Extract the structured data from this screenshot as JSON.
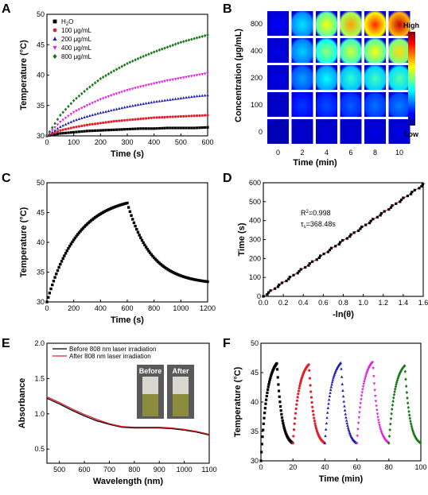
{
  "panels": [
    "A",
    "B",
    "C",
    "D",
    "E",
    "F"
  ],
  "colors": {
    "black": "#000000",
    "red": "#e0202a",
    "blue": "#2020b0",
    "magenta": "#e020e0",
    "green": "#1a7a1a"
  },
  "chart_data": [
    {
      "panel": "A",
      "type": "scatter",
      "xlabel": "Time (s)",
      "ylabel": "Temperature (°C)",
      "xlim": [
        0,
        600
      ],
      "ylim": [
        30,
        50
      ],
      "xticks": [
        0,
        100,
        200,
        300,
        400,
        500,
        600
      ],
      "yticks": [
        30,
        35,
        40,
        45,
        50
      ],
      "x": [
        0,
        50,
        100,
        150,
        200,
        250,
        300,
        350,
        400,
        450,
        500,
        550,
        600
      ],
      "legend_position": "top-left",
      "series": [
        {
          "name": "H2O",
          "label_main": "H",
          "label_sub": "2",
          "label_tail": "O",
          "marker": "square",
          "color": "#000000",
          "values": [
            30.0,
            30.4,
            30.6,
            30.8,
            30.9,
            31.0,
            31.1,
            31.2,
            31.2,
            31.3,
            31.3,
            31.3,
            31.4
          ]
        },
        {
          "name": "100 μg/mL",
          "marker": "circle",
          "color": "#e0202a",
          "values": [
            30.0,
            30.9,
            31.4,
            31.8,
            32.1,
            32.4,
            32.6,
            32.8,
            33.0,
            33.1,
            33.2,
            33.3,
            33.4
          ]
        },
        {
          "name": "200 μg/mL",
          "marker": "triangle-up",
          "color": "#2020b0",
          "values": [
            30.0,
            31.5,
            32.5,
            33.2,
            33.8,
            34.3,
            34.8,
            35.2,
            35.6,
            35.9,
            36.2,
            36.5,
            36.7
          ]
        },
        {
          "name": "400 μg/mL",
          "marker": "triangle-down",
          "color": "#e020e0",
          "values": [
            30.0,
            32.3,
            33.9,
            35.0,
            36.0,
            36.8,
            37.5,
            38.1,
            38.6,
            39.1,
            39.5,
            39.9,
            40.3
          ]
        },
        {
          "name": "800 μg/mL",
          "marker": "diamond",
          "color": "#1a7a1a",
          "values": [
            30.0,
            33.4,
            35.8,
            37.7,
            39.4,
            40.7,
            41.9,
            42.9,
            43.8,
            44.6,
            45.4,
            46.0,
            46.6
          ]
        }
      ]
    },
    {
      "panel": "B",
      "type": "heatmap",
      "xlabel": "Time (min)",
      "ylabel": "Concentration (μg/mL)",
      "x": [
        0,
        2,
        4,
        6,
        8,
        10
      ],
      "y": [
        800,
        400,
        200,
        100,
        0
      ],
      "colorbar_high": "High",
      "colorbar_low": "Low",
      "intensity": [
        [
          0.12,
          0.35,
          0.62,
          0.72,
          0.84,
          0.93
        ],
        [
          0.1,
          0.33,
          0.52,
          0.58,
          0.62,
          0.66
        ],
        [
          0.1,
          0.28,
          0.38,
          0.42,
          0.44,
          0.46
        ],
        [
          0.08,
          0.18,
          0.2,
          0.22,
          0.24,
          0.25
        ],
        [
          0.06,
          0.08,
          0.09,
          0.09,
          0.1,
          0.1
        ]
      ]
    },
    {
      "panel": "C",
      "type": "scatter",
      "xlabel": "Time (s)",
      "ylabel": "Temperature (°C)",
      "xlim": [
        0,
        1200
      ],
      "ylim": [
        30,
        50
      ],
      "xticks": [
        0,
        200,
        400,
        600,
        800,
        1000,
        1200
      ],
      "yticks": [
        30,
        35,
        40,
        45,
        50
      ],
      "series": [
        {
          "name": "",
          "color": "#000000",
          "heating_start": 30.0,
          "heating_end": 46.6,
          "cooling_end": 33.4,
          "peak_time": 600,
          "end_time": 1200
        }
      ]
    },
    {
      "panel": "D",
      "type": "scatter",
      "xlabel": "-ln(θ)",
      "ylabel": "Time (s)",
      "xlim": [
        0,
        1.6
      ],
      "ylim": [
        0,
        600
      ],
      "xticks": [
        0.0,
        0.2,
        0.4,
        0.6,
        0.8,
        1.0,
        1.2,
        1.4,
        1.6
      ],
      "yticks": [
        0,
        100,
        200,
        300,
        400,
        500,
        600
      ],
      "fit_slope": 368.48,
      "annotation_r2_main": "R",
      "annotation_r2_sup": "2",
      "annotation_r2_tail": "=0.998",
      "annotation_tau_main": "τ",
      "annotation_tau_sub": "s",
      "annotation_tau_tail": "=368.48s"
    },
    {
      "panel": "E",
      "type": "line",
      "xlabel": "Wavelength (nm)",
      "ylabel": "Absorbance",
      "xlim": [
        450,
        1100
      ],
      "ylim": [
        0.3,
        2.0
      ],
      "xticks": [
        500,
        600,
        700,
        800,
        900,
        1000,
        1100
      ],
      "yticks": [
        0.5,
        1.0,
        1.5,
        2.0
      ],
      "x": [
        450,
        500,
        550,
        600,
        650,
        700,
        750,
        800,
        850,
        900,
        950,
        1000,
        1050,
        1100
      ],
      "series": [
        {
          "name": "Before 808 nm laser irradiation",
          "color": "#000000",
          "values": [
            1.22,
            1.14,
            1.05,
            0.97,
            0.9,
            0.85,
            0.81,
            0.8,
            0.8,
            0.8,
            0.79,
            0.77,
            0.74,
            0.7
          ]
        },
        {
          "name": "After 808 nm laser irradiation",
          "color": "#e0202a",
          "values": [
            1.24,
            1.16,
            1.07,
            0.99,
            0.92,
            0.86,
            0.82,
            0.81,
            0.81,
            0.81,
            0.8,
            0.78,
            0.75,
            0.71
          ]
        }
      ],
      "inset_labels": [
        "Before",
        "After"
      ]
    },
    {
      "panel": "F",
      "type": "scatter",
      "xlabel": "Time (min)",
      "ylabel": "Temperature (°C)",
      "xlim": [
        0,
        100
      ],
      "ylim": [
        30,
        50
      ],
      "xticks": [
        0,
        20,
        40,
        60,
        80,
        100
      ],
      "yticks": [
        30,
        35,
        40,
        45,
        50
      ],
      "cycles": [
        {
          "start": 0,
          "color": "#000000",
          "marker": "square",
          "peak": 46.6
        },
        {
          "start": 20,
          "color": "#e0202a",
          "marker": "circle",
          "peak": 46.4
        },
        {
          "start": 40,
          "color": "#2020b0",
          "marker": "triangle-up",
          "peak": 46.7
        },
        {
          "start": 60,
          "color": "#e020e0",
          "marker": "triangle-down",
          "peak": 46.8
        },
        {
          "start": 80,
          "color": "#1a7a1a",
          "marker": "diamond",
          "peak": 46.2
        }
      ],
      "cycle_min": 33.0,
      "cycle_base": 30.0
    }
  ]
}
